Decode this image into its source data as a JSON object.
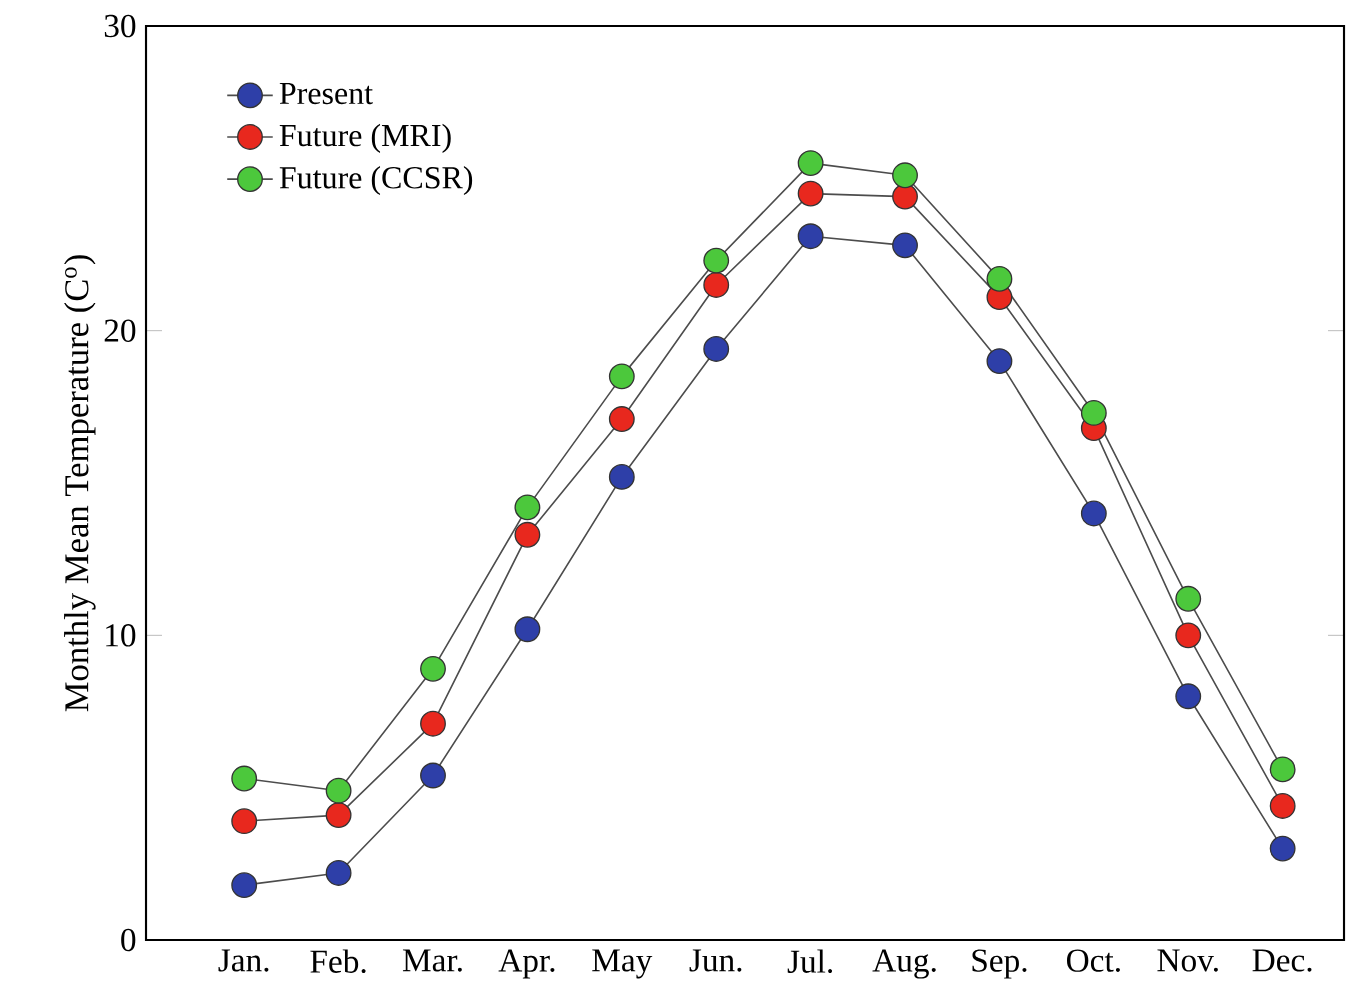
{
  "chart_data": {
    "type": "line",
    "ylabel": "Monthly Mean Temperature (C$^{o}$)",
    "categories": [
      "Jan.",
      "Feb.",
      "Mar.",
      "Apr.",
      "May",
      "Jun.",
      "Jul.",
      "Aug.",
      "Sep.",
      "Oct.",
      "Nov.",
      "Dec."
    ],
    "series": [
      {
        "name": "Present",
        "color": "#2e3fa8",
        "values": [
          1.8,
          2.2,
          5.4,
          10.2,
          15.2,
          19.4,
          23.1,
          22.8,
          19.0,
          14.0,
          8.0,
          3.0
        ]
      },
      {
        "name": "Future (MRI)",
        "color": "#e8281e",
        "values": [
          3.9,
          4.1,
          7.1,
          13.3,
          17.1,
          21.5,
          24.5,
          24.4,
          21.1,
          16.8,
          10.0,
          4.4
        ]
      },
      {
        "name": "Future (CCSR)",
        "color": "#4cc83c",
        "values": [
          5.3,
          4.9,
          8.9,
          14.2,
          18.5,
          22.3,
          25.5,
          25.1,
          21.7,
          17.3,
          11.2,
          5.6
        ]
      }
    ],
    "ylim": [
      0,
      30
    ],
    "yticks": [
      0,
      10,
      20,
      30
    ],
    "grid": false,
    "legend": "top left",
    "marker": "circle",
    "line_style": "solid"
  }
}
